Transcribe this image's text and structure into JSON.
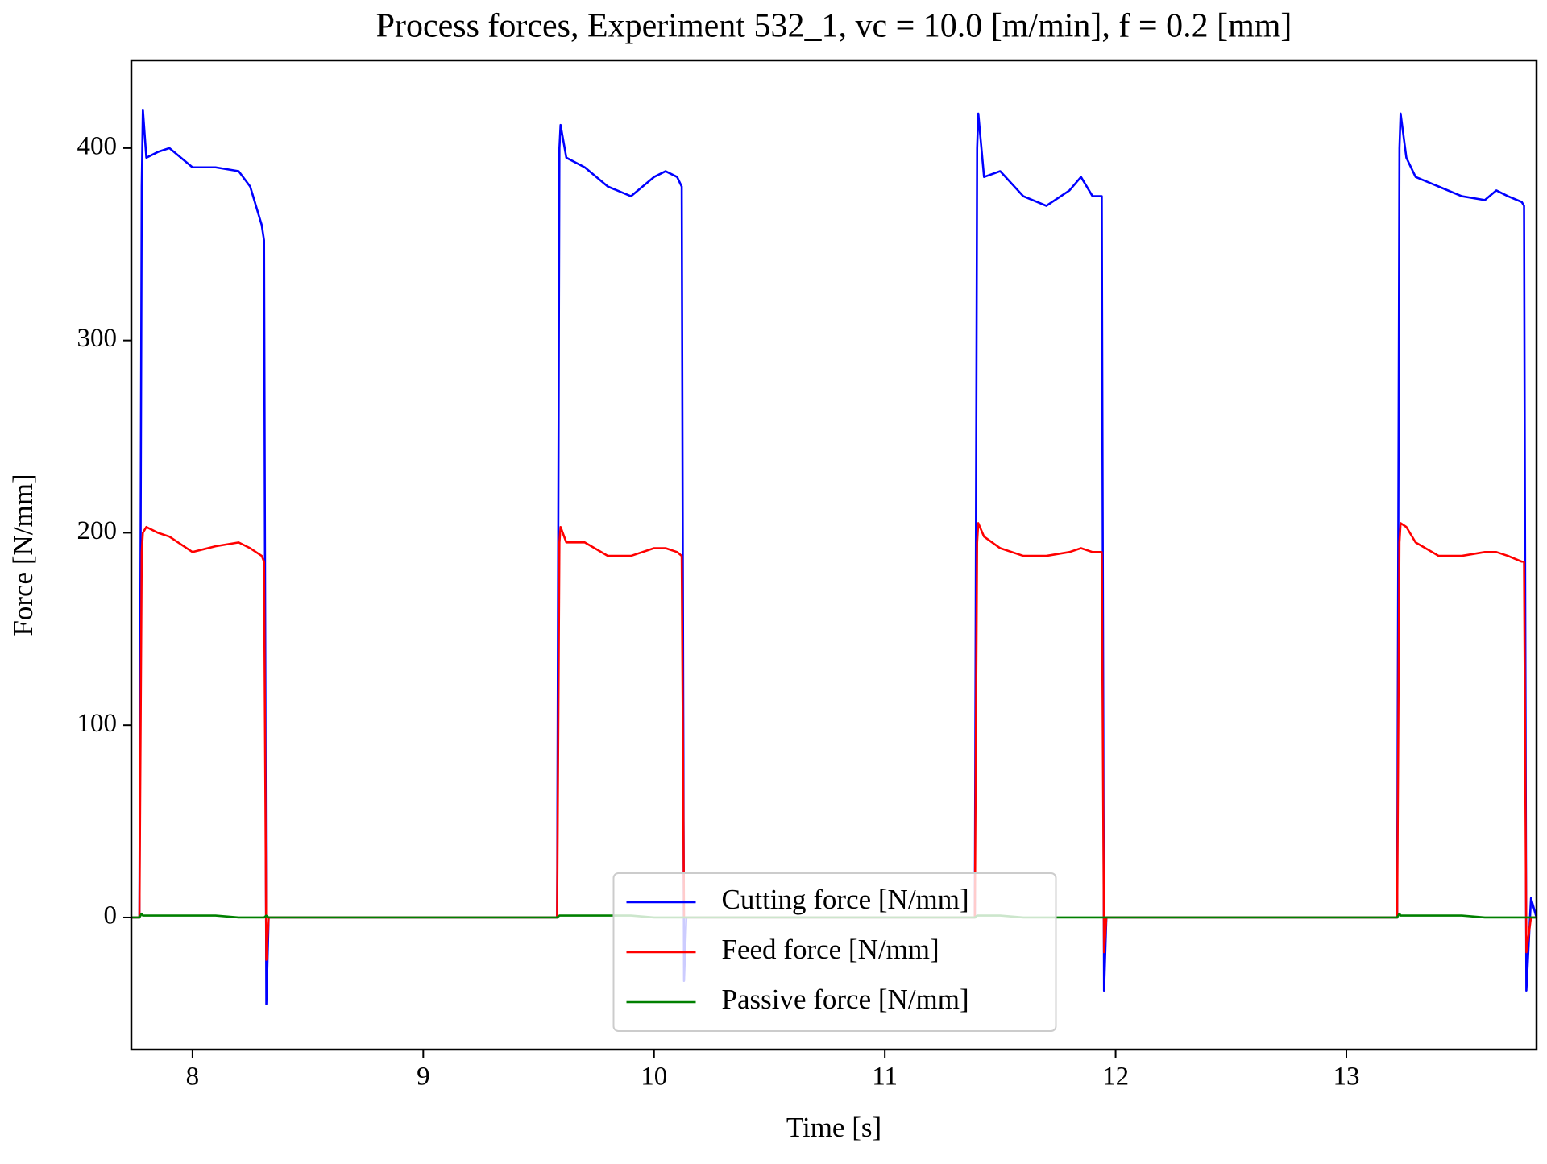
{
  "chart_data": {
    "type": "line",
    "title": "Process forces, Experiment 532_1, vc = 10.0 [m/min], f = 0.2 [mm]",
    "xlabel": "Time [s]",
    "ylabel": "Force [N/mm]",
    "x": [
      7.735,
      7.77,
      7.78,
      7.785,
      7.8,
      7.85,
      7.9,
      8.0,
      8.1,
      8.2,
      8.25,
      8.3,
      8.31,
      8.32,
      8.33,
      8.35,
      9.0,
      9.58,
      9.59,
      9.595,
      9.62,
      9.7,
      9.8,
      9.9,
      10.0,
      10.05,
      10.1,
      10.12,
      10.13,
      10.14,
      10.16,
      11.0,
      11.39,
      11.4,
      11.405,
      11.43,
      11.5,
      11.6,
      11.7,
      11.8,
      11.85,
      11.9,
      11.94,
      11.95,
      11.96,
      11.98,
      13.0,
      13.22,
      13.23,
      13.235,
      13.26,
      13.3,
      13.4,
      13.5,
      13.6,
      13.65,
      13.7,
      13.76,
      13.77,
      13.78,
      13.8,
      13.824
    ],
    "series": [
      {
        "name": "Cutting force [N/mm]",
        "color": "#0000ff",
        "values": [
          0,
          0,
          380,
          420,
          395,
          398,
          400,
          390,
          390,
          388,
          380,
          360,
          352,
          -45,
          0,
          0,
          0,
          0,
          400,
          412,
          395,
          390,
          380,
          375,
          385,
          388,
          385,
          380,
          -33,
          0,
          0,
          0,
          0,
          400,
          418,
          385,
          388,
          375,
          370,
          378,
          385,
          375,
          375,
          -38,
          0,
          0,
          0,
          0,
          400,
          418,
          395,
          385,
          380,
          375,
          373,
          378,
          375,
          372,
          370,
          -38,
          10,
          0
        ]
      },
      {
        "name": "Feed force [N/mm]",
        "color": "#ff0000",
        "values": [
          0,
          0,
          190,
          200,
          203,
          200,
          198,
          190,
          193,
          195,
          192,
          188,
          185,
          -22,
          0,
          0,
          0,
          0,
          195,
          203,
          195,
          195,
          188,
          188,
          192,
          192,
          190,
          188,
          0,
          0,
          0,
          0,
          0,
          195,
          205,
          198,
          192,
          188,
          188,
          190,
          192,
          190,
          190,
          -18,
          0,
          0,
          0,
          0,
          195,
          205,
          203,
          195,
          188,
          188,
          190,
          190,
          188,
          185,
          185,
          -18,
          0,
          0
        ]
      },
      {
        "name": "Passive force [N/mm]",
        "color": "#008000",
        "values": [
          0,
          0,
          2,
          1,
          1,
          1,
          1,
          1,
          1,
          0,
          0,
          0,
          0,
          1,
          0,
          0,
          0,
          0,
          1,
          1,
          1,
          1,
          1,
          1,
          0,
          0,
          0,
          0,
          0,
          0,
          0,
          0,
          0,
          1,
          1,
          1,
          1,
          0,
          0,
          0,
          0,
          0,
          0,
          0,
          0,
          0,
          0,
          0,
          2,
          1,
          1,
          1,
          1,
          1,
          0,
          0,
          0,
          0,
          0,
          0,
          0,
          0
        ]
      }
    ],
    "xlim": [
      7.735,
      13.824
    ],
    "ylim": [
      -68.7,
      445.6
    ],
    "xticks": [
      8,
      9,
      10,
      11,
      12,
      13
    ],
    "yticks": [
      0,
      100,
      200,
      300,
      400
    ],
    "grid": false,
    "legend": "lower center"
  }
}
